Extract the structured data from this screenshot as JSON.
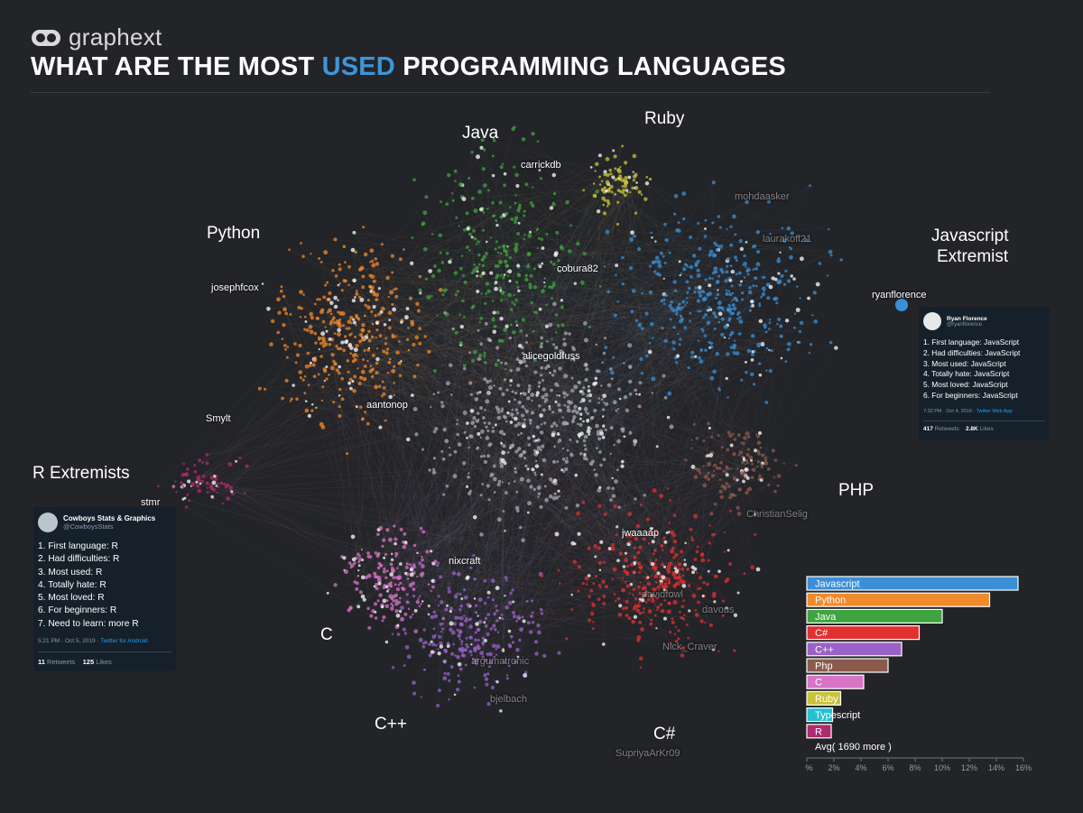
{
  "header": {
    "brand": "graphext",
    "title_pre": "WHAT ARE THE MOST ",
    "title_highlight": "USED",
    "title_post": " PROGRAMMING LANGUAGES",
    "highlight_color": "#3e95d8"
  },
  "clusters": [
    {
      "label": "Java",
      "color": "#3fa33f"
    },
    {
      "label": "Ruby",
      "color": "#c9c23a"
    },
    {
      "label": "Python",
      "color": "#f08a2a"
    },
    {
      "label": "Javascript",
      "color": "#3a8fd6"
    },
    {
      "label": "Extremist",
      "color": "#3a8fd6"
    },
    {
      "label": "R Extremists",
      "color": "#b02a6e"
    },
    {
      "label": "PHP",
      "color": "#8c5a4d"
    },
    {
      "label": "C",
      "color": "#d774c6"
    },
    {
      "label": "C++",
      "color": "#9a62c8"
    },
    {
      "label": "C#",
      "color": "#e03030"
    }
  ],
  "node_labels": [
    "carrickdb",
    "mohdaasker",
    "laurakoff21",
    "josephfcox",
    "cobura82",
    "ryanflorence",
    "alicegoldfuss",
    "aantonop",
    "Smylt",
    "stmr",
    "jwaaaap",
    "ChristianSelig",
    "nixcraft",
    "davidfowl",
    "davous",
    "Nick_Craver",
    "argumatronic",
    "bjelbach",
    "SupriyaArKr09"
  ],
  "tweets": {
    "r": {
      "name": "Cowboys Stats & Graphics",
      "handle": "@CowboysStats",
      "lines": [
        "1. First language: R",
        "2. Had difficulties: R",
        "3. Most used: R",
        "4. Totally hate: R",
        "5. Most loved: R",
        "6. For beginners: R",
        "7. Need to learn: more R"
      ],
      "time": "5:21 PM · Oct 5, 2019 · ",
      "source": "Twitter for Android",
      "retweets": "11",
      "retweets_label": "Retweets",
      "likes": "125",
      "likes_label": "Likes"
    },
    "js": {
      "name": "Ryan Florence",
      "handle": "@ryanflorence",
      "lines": [
        "1. First language: JavaScript",
        "2. Had difficulties: JavaScript",
        "3. Most used: JavaScript",
        "4. Totally hate: JavaScript",
        "5. Most loved: JavaScript",
        "6. For beginners: JavaScript"
      ],
      "time": "7:32 PM · Oct 4, 2019 · ",
      "source": "Twitter Web App",
      "retweets": "417",
      "retweets_label": "Retweets",
      "likes": "2.8K",
      "likes_label": "Likes"
    }
  },
  "chart_data": {
    "type": "bar",
    "orientation": "horizontal",
    "categories": [
      "Javascript",
      "Python",
      "Java",
      "C#",
      "C++",
      "Php",
      "C",
      "Ruby",
      "Typescript",
      "R"
    ],
    "values": [
      15.6,
      13.5,
      10.0,
      8.3,
      7.0,
      6.0,
      4.2,
      2.5,
      1.9,
      1.8
    ],
    "colors": [
      "#3a8fd6",
      "#f08a2a",
      "#3fa33f",
      "#e03030",
      "#9a62c8",
      "#8c5a4d",
      "#d774c6",
      "#c9c23a",
      "#27bfd0",
      "#b02a6e"
    ],
    "footer": "Avg( 1690 more )",
    "xticks": [
      "0%",
      "2%",
      "4%",
      "6%",
      "8%",
      "10%",
      "12%",
      "14%",
      "16%"
    ],
    "xlim": [
      0,
      16
    ]
  }
}
